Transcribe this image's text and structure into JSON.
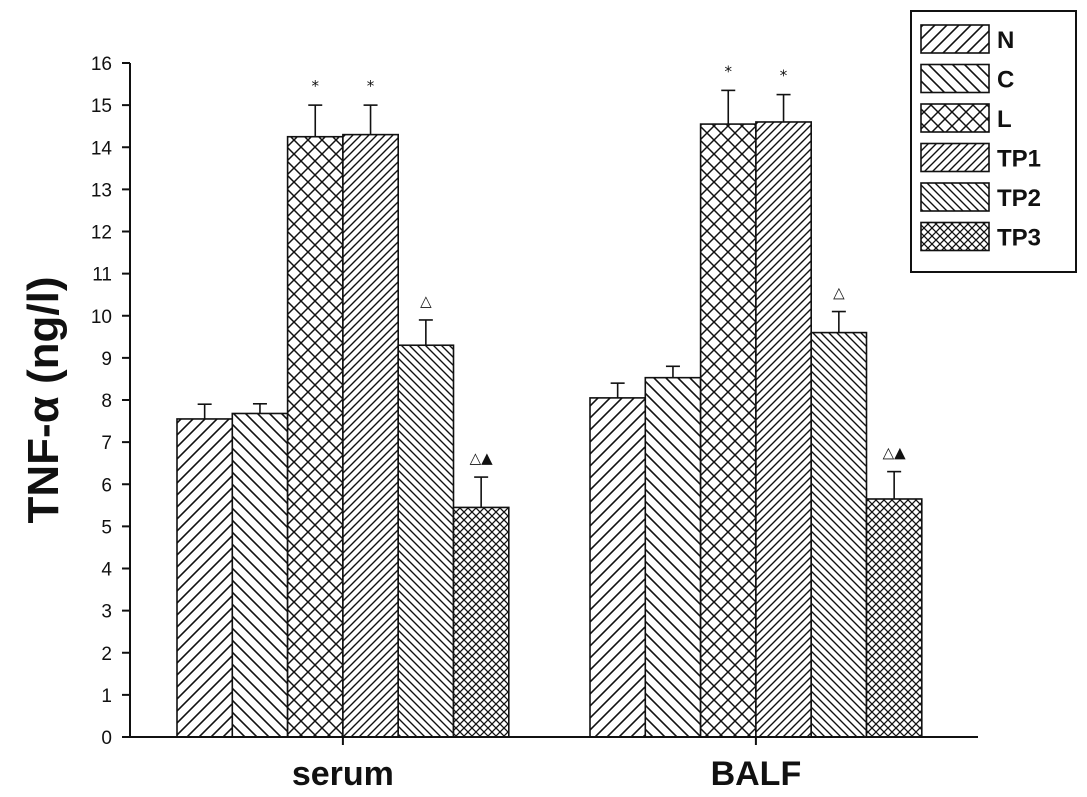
{
  "chart_data": {
    "type": "bar",
    "ylabel": "TNF-α (ng/l)",
    "ylim": [
      0,
      16
    ],
    "yticks": [
      "0",
      "1",
      "2",
      "3",
      "4",
      "5",
      "6",
      "7",
      "8",
      "9",
      "10",
      "11",
      "12",
      "13",
      "14",
      "15",
      "16"
    ],
    "categories": [
      "serum",
      "BALF"
    ],
    "legend_position": "top-right",
    "series": [
      {
        "name": "N",
        "pattern": "diag-up",
        "values": [
          7.55,
          8.05
        ],
        "errors": [
          0.35,
          0.35
        ],
        "markers": [
          "",
          ""
        ]
      },
      {
        "name": "C",
        "pattern": "diag-down",
        "values": [
          7.68,
          8.53
        ],
        "errors": [
          0.23,
          0.27
        ],
        "markers": [
          "",
          ""
        ]
      },
      {
        "name": "L",
        "pattern": "crosshatch",
        "values": [
          14.25,
          14.55
        ],
        "errors": [
          0.75,
          0.8
        ],
        "markers": [
          "*",
          "*"
        ]
      },
      {
        "name": "TP1",
        "pattern": "diag-up-dense",
        "values": [
          14.3,
          14.6
        ],
        "errors": [
          0.7,
          0.65
        ],
        "markers": [
          "*",
          "*"
        ]
      },
      {
        "name": "TP2",
        "pattern": "diag-down-dense",
        "values": [
          9.3,
          9.6
        ],
        "errors": [
          0.6,
          0.5
        ],
        "markers": [
          "△",
          "△"
        ]
      },
      {
        "name": "TP3",
        "pattern": "crosshatch-dense",
        "values": [
          5.45,
          5.65
        ],
        "errors": [
          0.72,
          0.65
        ],
        "markers": [
          "△▲",
          "△▲"
        ]
      }
    ]
  }
}
